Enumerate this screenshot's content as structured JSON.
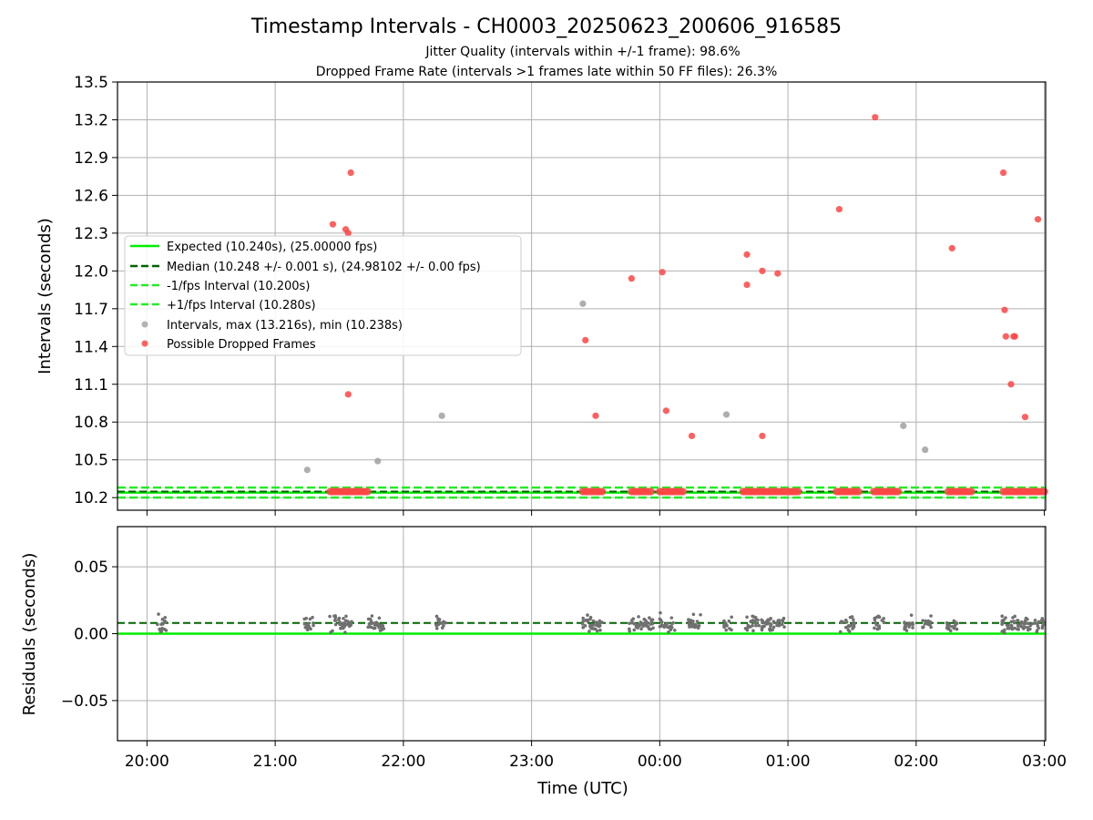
{
  "title": "Timestamp Intervals - CH0003_20250623_200606_916585",
  "subtitle_1": "Jitter Quality (intervals within +/-1 frame): 98.6%",
  "subtitle_2": "Dropped Frame Rate (intervals >1 frames late within 50 FF files): 26.3%",
  "colors": {
    "expected": "#00ee00",
    "median": "#006400",
    "fps_interval": "#22ee22",
    "intervals": "#a0a0a0",
    "dropped": "#ff4444",
    "residuals": "#707070",
    "grid": "#b0b0b0"
  },
  "chart_data": [
    {
      "type": "scatter",
      "panel": "top",
      "ylabel": "Intervals (seconds)",
      "xlabel": "",
      "ylim": [
        10.1,
        13.5
      ],
      "xlim_hours": [
        19.77,
        27.01
      ],
      "yticks": [
        "10.2",
        "10.5",
        "10.8",
        "11.1",
        "11.4",
        "11.7",
        "12.0",
        "12.3",
        "12.6",
        "12.9",
        "13.2",
        "13.5"
      ],
      "ytick_values": [
        10.2,
        10.5,
        10.8,
        11.1,
        11.4,
        11.7,
        12.0,
        12.3,
        12.6,
        12.9,
        13.2,
        13.5
      ],
      "grid": true,
      "legend_position": "center-left",
      "legend": [
        "Expected (10.240s), (25.00000 fps)",
        "Median (10.248 +/- 0.001 s), (24.98102 +/- 0.00 fps)",
        "-1/fps Interval (10.200s)",
        "+1/fps Interval (10.280s)",
        "Intervals, max (13.216s), min (10.238s)",
        "Possible Dropped Frames"
      ],
      "lines": {
        "expected": 10.24,
        "median": 10.248,
        "minus_fps": 10.2,
        "plus_fps": 10.28
      },
      "series": [
        {
          "name": "Intervals, max (13.216s), min (10.238s)",
          "x_hours": [
            21.25,
            21.8,
            22.3,
            23.4,
            24.52,
            25.9,
            26.07
          ],
          "y": [
            10.42,
            10.49,
            10.85,
            11.74,
            10.86,
            10.77,
            10.58
          ]
        },
        {
          "name": "Possible Dropped Frames",
          "x_hours": [
            21.45,
            21.55,
            21.57,
            21.57,
            21.59,
            23.42,
            23.5,
            23.78,
            24.02,
            24.05,
            24.25,
            24.68,
            24.68,
            24.8,
            24.8,
            24.92,
            25.4,
            25.68,
            26.28,
            26.68,
            26.69,
            26.7,
            26.74,
            26.76,
            26.77,
            26.85,
            26.95
          ],
          "y": [
            12.37,
            12.33,
            12.3,
            11.02,
            12.78,
            11.45,
            10.85,
            11.94,
            11.99,
            10.89,
            10.69,
            12.13,
            11.89,
            12.0,
            10.69,
            11.98,
            12.49,
            13.22,
            12.18,
            12.78,
            11.69,
            11.48,
            11.1,
            11.48,
            11.48,
            10.84,
            12.41
          ]
        },
        {
          "name": "Possible Dropped Frames (baseline clusters)",
          "cluster_hours": [
            [
              21.43,
              21.72
            ],
            [
              23.4,
              23.55
            ],
            [
              23.78,
              23.93
            ],
            [
              24.0,
              24.18
            ],
            [
              24.65,
              25.08
            ],
            [
              25.38,
              25.55
            ],
            [
              25.67,
              25.86
            ],
            [
              26.25,
              26.43
            ],
            [
              26.68,
              27.0
            ]
          ],
          "y": 10.248
        }
      ]
    },
    {
      "type": "scatter",
      "panel": "bottom",
      "xlabel": "Time (UTC)",
      "ylabel": "Residuals (seconds)",
      "ylim": [
        -0.08,
        0.08
      ],
      "yticks": [
        "0.05",
        "0.00",
        "−0.05"
      ],
      "ytick_values": [
        0.05,
        0.0,
        -0.05
      ],
      "xticks": [
        "20:00",
        "21:00",
        "22:00",
        "23:00",
        "00:00",
        "01:00",
        "02:00",
        "03:00"
      ],
      "xtick_hours": [
        20,
        21,
        22,
        23,
        24,
        25,
        26,
        27
      ],
      "grid": true,
      "lines": {
        "expected": 0.0,
        "median": 0.008
      },
      "series": [
        {
          "name": "Residuals",
          "cluster_hours": [
            [
              20.08,
              20.15
            ],
            [
              21.22,
              21.3
            ],
            [
              21.42,
              21.6
            ],
            [
              21.72,
              21.85
            ],
            [
              22.25,
              22.33
            ],
            [
              23.38,
              23.55
            ],
            [
              23.75,
              23.95
            ],
            [
              24.0,
              24.12
            ],
            [
              24.22,
              24.32
            ],
            [
              24.5,
              24.57
            ],
            [
              24.66,
              24.8
            ],
            [
              24.8,
              24.98
            ],
            [
              25.4,
              25.52
            ],
            [
              25.67,
              25.75
            ],
            [
              25.88,
              25.98
            ],
            [
              26.05,
              26.12
            ],
            [
              26.24,
              26.32
            ],
            [
              26.66,
              27.0
            ]
          ],
          "center": 0.007,
          "spread": 0.009
        }
      ]
    }
  ]
}
